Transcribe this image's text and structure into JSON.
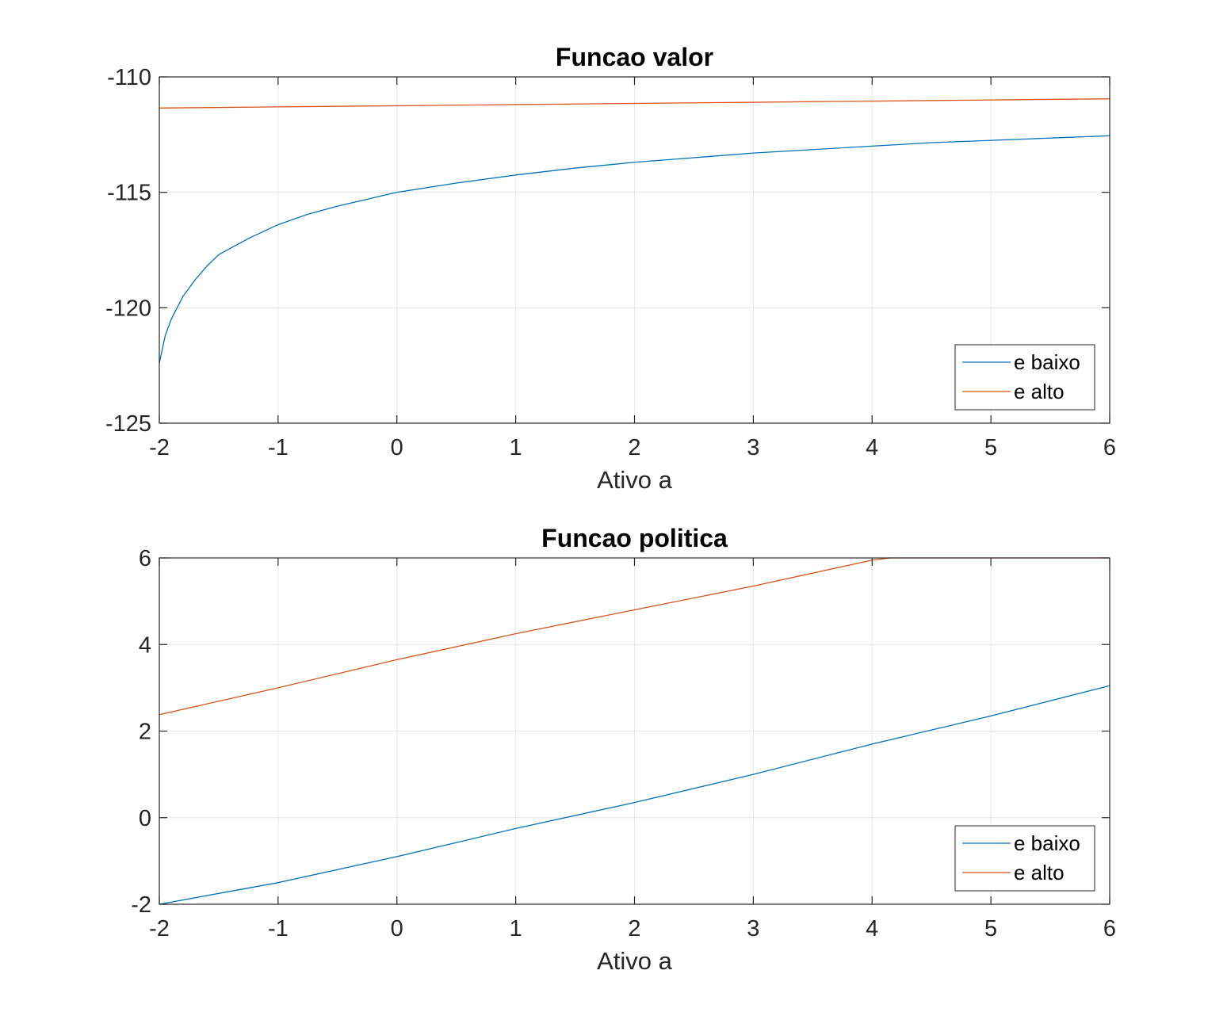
{
  "colors": {
    "e_baixo": "#0072BD",
    "e_alto": "#D95319",
    "grid": "#e6e6e6",
    "axes": "#262626"
  },
  "chart_data": [
    {
      "type": "line",
      "title": "Funcao valor",
      "xlabel": "Ativo a",
      "ylabel": "",
      "xlim": [
        -2,
        6
      ],
      "ylim": [
        -125,
        -110
      ],
      "xticks": [
        -2,
        -1,
        0,
        1,
        2,
        3,
        4,
        5,
        6
      ],
      "yticks": [
        -110,
        -115,
        -120,
        -125
      ],
      "grid": true,
      "legend_position": "bottom-right",
      "series": [
        {
          "name": "e baixo",
          "color": "#0072BD",
          "x": [
            -2,
            -1.95,
            -1.9,
            -1.8,
            -1.7,
            -1.6,
            -1.5,
            -1.25,
            -1,
            -0.75,
            -0.5,
            -0.25,
            0,
            0.5,
            1,
            1.5,
            2,
            2.5,
            3,
            3.5,
            4,
            4.5,
            5,
            5.5,
            6
          ],
          "y": [
            -122.4,
            -121.2,
            -120.5,
            -119.5,
            -118.8,
            -118.2,
            -117.7,
            -117.0,
            -116.4,
            -115.95,
            -115.6,
            -115.3,
            -115.0,
            -114.6,
            -114.25,
            -113.95,
            -113.7,
            -113.5,
            -113.3,
            -113.15,
            -113.0,
            -112.85,
            -112.75,
            -112.65,
            -112.55
          ]
        },
        {
          "name": "e alto",
          "color": "#D95319",
          "x": [
            -2,
            -1,
            0,
            1,
            2,
            3,
            4,
            5,
            6
          ],
          "y": [
            -111.35,
            -111.3,
            -111.25,
            -111.2,
            -111.15,
            -111.1,
            -111.05,
            -111.0,
            -110.95
          ]
        }
      ]
    },
    {
      "type": "line",
      "title": "Funcao politica",
      "xlabel": "Ativo a",
      "ylabel": "",
      "xlim": [
        -2,
        6
      ],
      "ylim": [
        -2,
        6
      ],
      "xticks": [
        -2,
        -1,
        0,
        1,
        2,
        3,
        4,
        5,
        6
      ],
      "yticks": [
        6,
        4,
        2,
        0,
        -2
      ],
      "grid": true,
      "legend_position": "bottom-right",
      "series": [
        {
          "name": "e baixo",
          "color": "#0072BD",
          "x": [
            -2,
            -1,
            0,
            1,
            2,
            3,
            4,
            5,
            6
          ],
          "y": [
            -2.0,
            -1.5,
            -0.9,
            -0.25,
            0.35,
            1.0,
            1.7,
            2.35,
            3.05
          ]
        },
        {
          "name": "e alto",
          "color": "#D95319",
          "x": [
            -2,
            -1,
            0,
            1,
            2,
            3,
            4,
            4.15,
            5,
            6
          ],
          "y": [
            2.38,
            3.0,
            3.65,
            4.25,
            4.8,
            5.35,
            5.95,
            6.0,
            6.0,
            6.0
          ]
        }
      ]
    }
  ]
}
